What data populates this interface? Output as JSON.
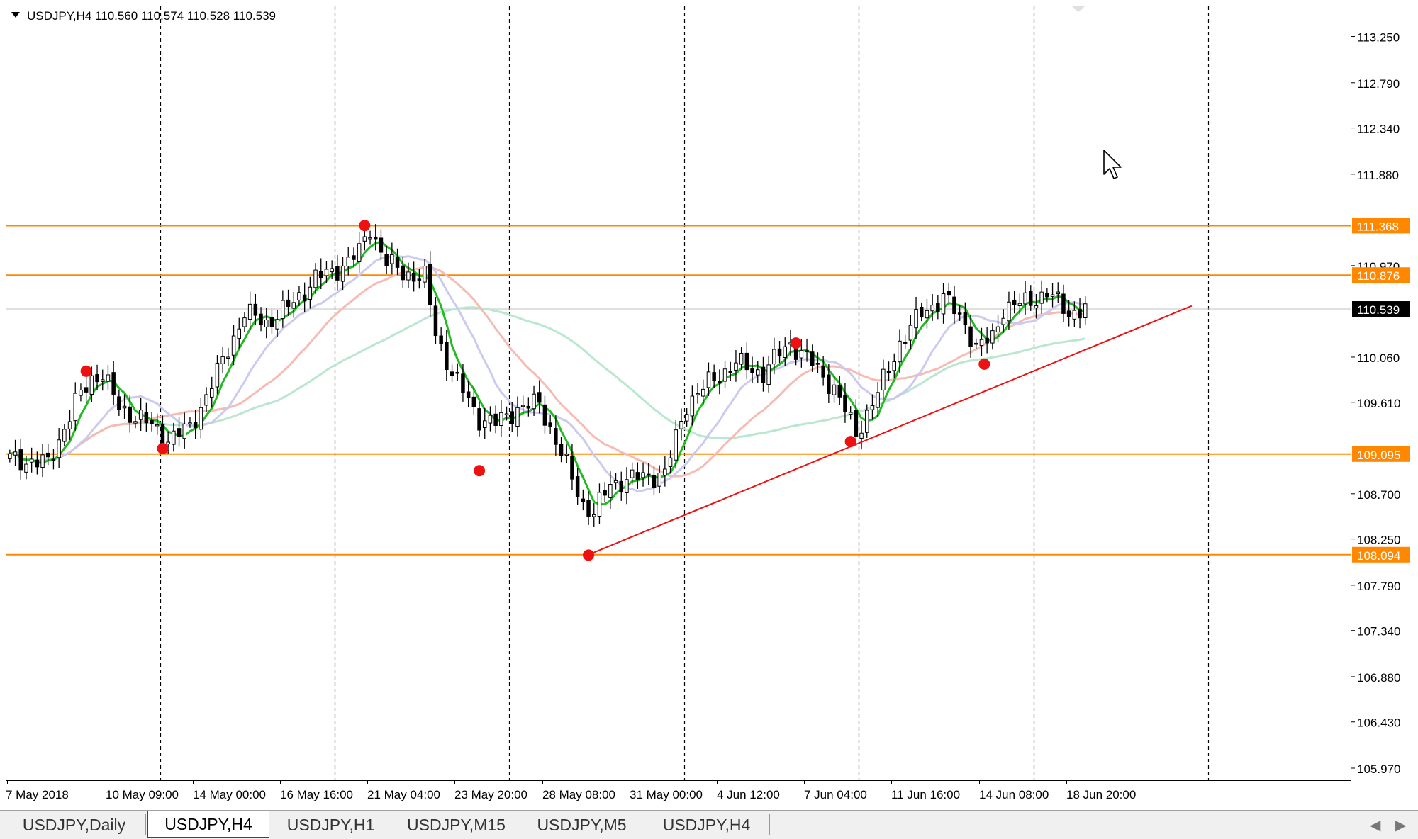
{
  "window": {
    "symbol_info": "USDJPY,H4  110.560 110.574 110.528 110.539",
    "menu_icon": "triangle-down-icon"
  },
  "tabs": [
    {
      "label": "USDJPY,Daily",
      "active": false
    },
    {
      "label": "USDJPY,H4",
      "active": true
    },
    {
      "label": "USDJPY,H1",
      "active": false
    },
    {
      "label": "USDJPY,M15",
      "active": false
    },
    {
      "label": "USDJPY,M5",
      "active": false
    },
    {
      "label": "USDJPY,H4",
      "active": false
    }
  ],
  "tab_scroll": {
    "left_icon": "◀",
    "right_icon": "▶"
  },
  "colors": {
    "background": "#ffffff",
    "bull_candle": "#ffffff",
    "bear_candle": "#000000",
    "ma_fast": "#22bb22",
    "ma_mid": "#c8c8ee",
    "ma_slow": "#f5b8b0",
    "ma_long": "#b6e6cc",
    "ma_long_late": "#f7d2b2",
    "hline": "#ff8800",
    "trendline": "#ee1111",
    "pivot": "#ee1111",
    "current_line": "#c0c0c0"
  },
  "chart_data": {
    "type": "candlestick",
    "symbol": "USDJPY",
    "timeframe": "H4",
    "ohlc_current": {
      "open": 110.56,
      "high": 110.574,
      "low": 110.528,
      "close": 110.539
    },
    "ylim": [
      105.85,
      113.55
    ],
    "y_ticks": [
      "113.250",
      "112.790",
      "112.340",
      "111.880",
      "110.970",
      "110.060",
      "109.610",
      "108.700",
      "108.250",
      "107.790",
      "107.340",
      "106.880",
      "106.430",
      "105.970"
    ],
    "x_ticks": [
      "7 May 2018",
      "10 May 09:00",
      "14 May 00:00",
      "16 May 16:00",
      "21 May 04:00",
      "23 May 20:00",
      "28 May 08:00",
      "31 May 00:00",
      "4 Jun 12:00",
      "7 Jun 04:00",
      "11 Jun 16:00",
      "14 Jun 08:00",
      "18 Jun 20:00"
    ],
    "n_slots": 221,
    "period_separators": [
      28,
      60,
      92,
      124,
      156,
      188,
      220
    ],
    "anchors": [
      [
        0,
        109.05
      ],
      [
        7,
        109.0
      ],
      [
        12,
        109.6
      ],
      [
        15,
        109.85
      ],
      [
        17,
        109.9
      ],
      [
        20,
        109.55
      ],
      [
        24,
        109.45
      ],
      [
        29,
        109.25
      ],
      [
        33,
        109.35
      ],
      [
        38,
        109.9
      ],
      [
        43,
        110.5
      ],
      [
        47,
        110.4
      ],
      [
        52,
        110.6
      ],
      [
        56,
        110.85
      ],
      [
        59,
        110.9
      ],
      [
        64,
        111.1
      ],
      [
        66,
        111.35
      ],
      [
        69,
        111.0
      ],
      [
        72,
        110.9
      ],
      [
        76,
        110.85
      ],
      [
        78,
        110.3
      ],
      [
        81,
        109.9
      ],
      [
        86,
        109.45
      ],
      [
        89,
        109.4
      ],
      [
        93,
        109.55
      ],
      [
        97,
        109.6
      ],
      [
        101,
        109.1
      ],
      [
        105,
        108.6
      ],
      [
        107,
        108.5
      ],
      [
        110,
        108.8
      ],
      [
        114,
        108.85
      ],
      [
        120,
        108.9
      ],
      [
        124,
        109.6
      ],
      [
        128,
        109.8
      ],
      [
        133,
        110.0
      ],
      [
        138,
        109.9
      ],
      [
        141,
        110.1
      ],
      [
        143,
        110.2
      ],
      [
        147,
        110.0
      ],
      [
        151,
        109.75
      ],
      [
        155,
        109.3
      ],
      [
        159,
        109.7
      ],
      [
        163,
        110.2
      ],
      [
        167,
        110.5
      ],
      [
        171,
        110.65
      ],
      [
        175,
        110.4
      ],
      [
        177,
        110.15
      ],
      [
        180,
        110.25
      ],
      [
        182,
        110.55
      ],
      [
        186,
        110.6
      ],
      [
        190,
        110.7
      ],
      [
        194,
        110.5
      ],
      [
        197,
        110.54
      ]
    ],
    "moving_averages": [
      {
        "role": "fast",
        "period": 5
      },
      {
        "role": "mid",
        "period": 13
      },
      {
        "role": "slow",
        "period": 24
      },
      {
        "role": "long",
        "period": 50
      }
    ],
    "horizontal_levels": [
      {
        "value": 111.368,
        "label": "111.368"
      },
      {
        "value": 110.876,
        "label": "110.876"
      },
      {
        "value": 109.095,
        "label": "109.095"
      },
      {
        "value": 108.094,
        "label": "108.094"
      }
    ],
    "current_price": {
      "value": 110.539,
      "label": "110.539"
    },
    "trendline": {
      "x1": 106.5,
      "y1": 108.094,
      "x2": 217,
      "y2": 110.57
    },
    "pivots": [
      {
        "slot": 14.5,
        "value": 109.92
      },
      {
        "slot": 28.5,
        "value": 109.15
      },
      {
        "slot": 65.5,
        "value": 111.37
      },
      {
        "slot": 86.5,
        "value": 108.93
      },
      {
        "slot": 106.5,
        "value": 108.09
      },
      {
        "slot": 144.5,
        "value": 110.2
      },
      {
        "slot": 154.5,
        "value": 109.22
      },
      {
        "slot": 179,
        "value": 109.99
      }
    ]
  }
}
